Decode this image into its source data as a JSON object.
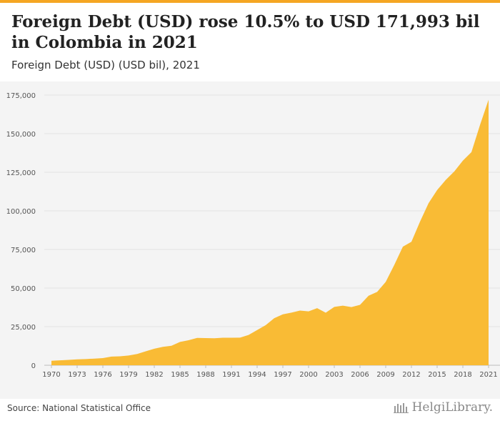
{
  "header": {
    "title": "Foreign Debt (USD) rose 10.5% to USD 171,993 bil in Colombia in 2021",
    "subtitle": "Foreign Debt (USD) (USD bil), 2021"
  },
  "footer": {
    "source": "Source: National Statistical Office",
    "brand": "HelgiLibrary."
  },
  "colors": {
    "accent": "#f5a623",
    "area": "#f9bb35"
  },
  "chart_data": {
    "type": "area",
    "title": "Foreign Debt (USD) rose 10.5% to USD 171,993 bil in Colombia in 2021",
    "subtitle": "Foreign Debt (USD) (USD bil), 2021",
    "ylim": [
      0,
      175000
    ],
    "yticks": [
      0,
      25000,
      50000,
      75000,
      100000,
      125000,
      150000,
      175000
    ],
    "ytick_labels": [
      "0",
      "25,000",
      "50,000",
      "75,000",
      "100,000",
      "125,000",
      "150,000",
      "175,000"
    ],
    "xtick_labels": [
      "1970",
      "1973",
      "1976",
      "1979",
      "1982",
      "1985",
      "1988",
      "1991",
      "1994",
      "1997",
      "2000",
      "2003",
      "2006",
      "2009",
      "2012",
      "2015",
      "2018",
      "2021"
    ],
    "grid": true,
    "x": [
      1970,
      1971,
      1972,
      1973,
      1974,
      1975,
      1976,
      1977,
      1978,
      1979,
      1980,
      1981,
      1982,
      1983,
      1984,
      1985,
      1986,
      1987,
      1988,
      1989,
      1990,
      1991,
      1992,
      1993,
      1994,
      1995,
      1996,
      1997,
      1998,
      1999,
      2000,
      2001,
      2002,
      2003,
      2004,
      2005,
      2006,
      2007,
      2008,
      2009,
      2010,
      2011,
      2012,
      2013,
      2014,
      2015,
      2016,
      2017,
      2018,
      2019,
      2020,
      2021
    ],
    "series": [
      {
        "values": [
          2900,
          3200,
          3500,
          3800,
          4000,
          4300,
          4600,
          5600,
          5800,
          6300,
          7300,
          9000,
          10700,
          11900,
          12600,
          15100,
          16200,
          17700,
          17600,
          17500,
          17800,
          17800,
          17900,
          19600,
          22800,
          26000,
          30500,
          33000,
          34100,
          35400,
          34900,
          37000,
          34000,
          37800,
          38600,
          37700,
          39100,
          45000,
          47500,
          54000,
          65000,
          76800,
          80000,
          93000,
          105000,
          113500,
          120000,
          125500,
          132500,
          138000,
          155600,
          171993
        ]
      }
    ]
  }
}
